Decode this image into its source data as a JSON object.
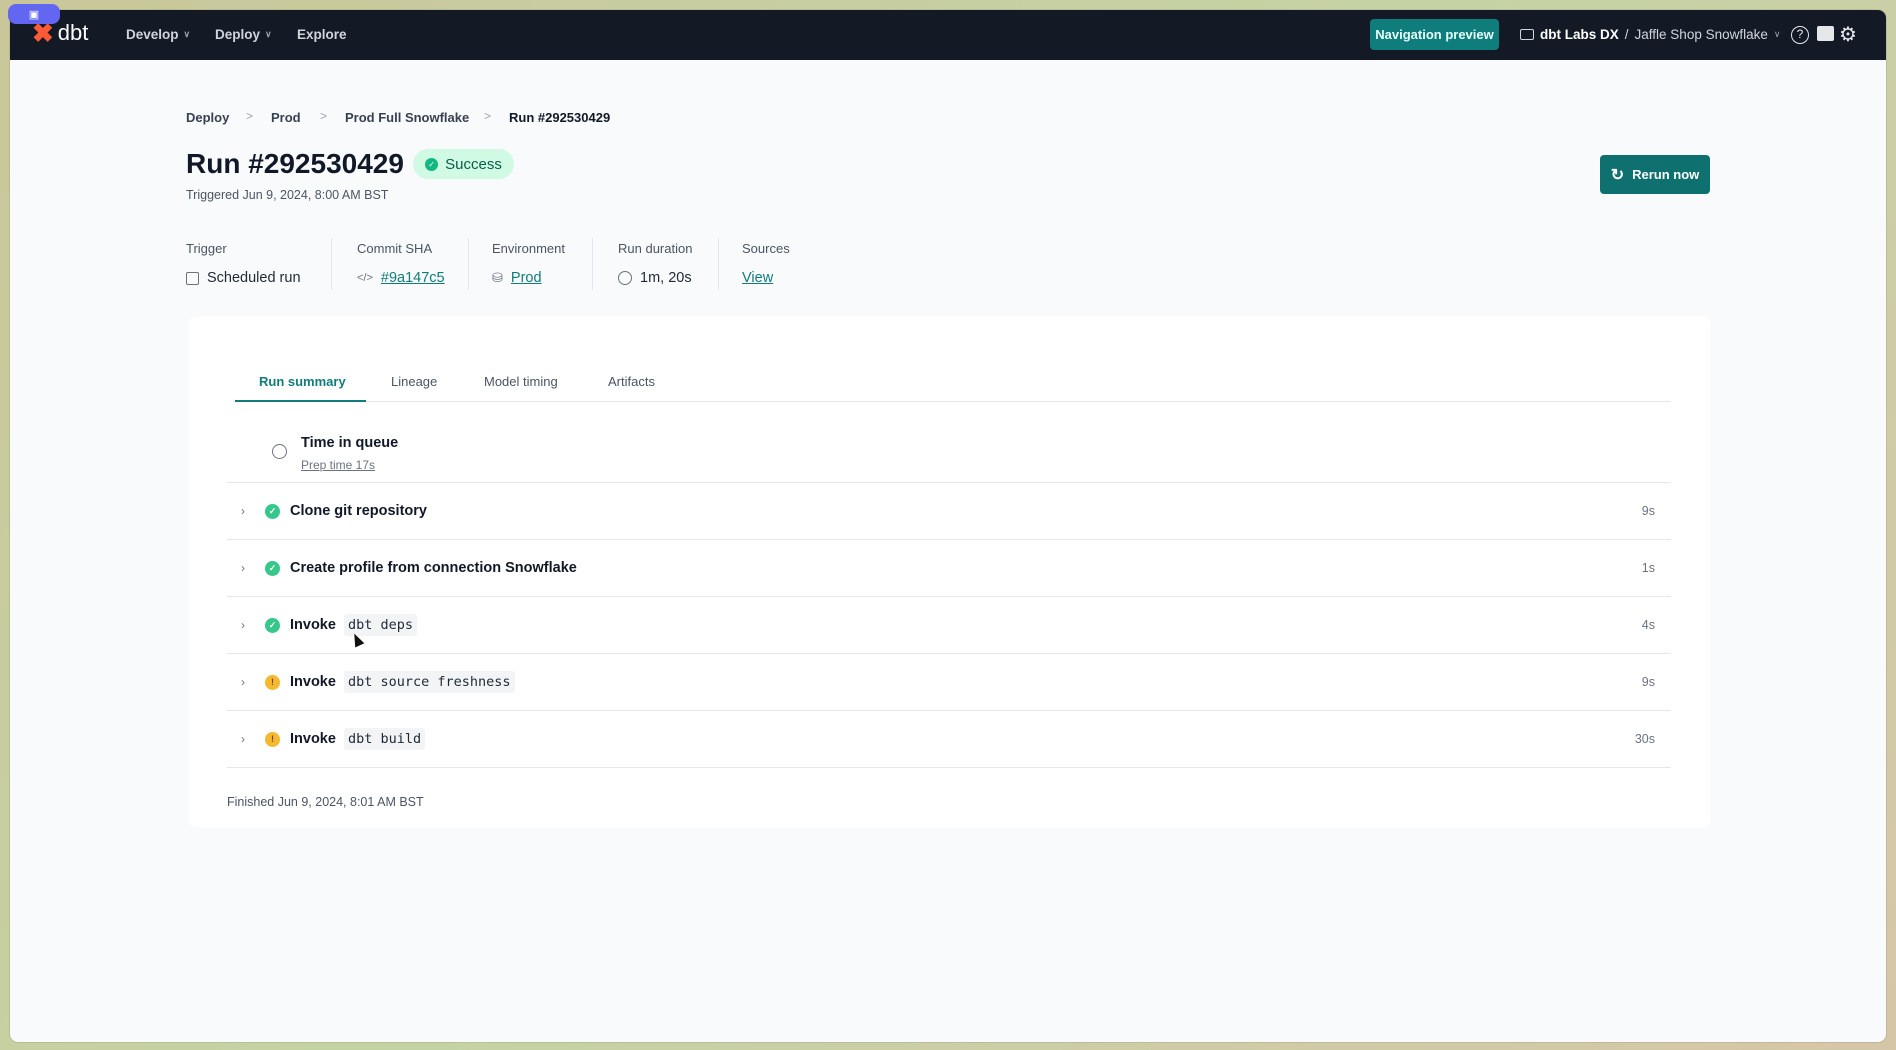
{
  "header": {
    "brand": "dbt",
    "nav": [
      {
        "label": "Develop",
        "has_menu": true
      },
      {
        "label": "Deploy",
        "has_menu": true
      },
      {
        "label": "Explore",
        "has_menu": false
      }
    ],
    "nav_preview_label": "Navigation preview",
    "account": "dbt Labs DX",
    "separator": "/",
    "project": "Jaffle Shop Snowflake"
  },
  "breadcrumb": [
    {
      "label": "Deploy"
    },
    {
      "label": "Prod"
    },
    {
      "label": "Prod Full Snowflake"
    },
    {
      "label": "Run #292530429"
    }
  ],
  "breadcrumb_sep": ">",
  "run": {
    "title": "Run #292530429",
    "status": "Success",
    "triggered": "Triggered Jun 9, 2024, 8:00 AM BST",
    "rerun_label": "Rerun now"
  },
  "meta": [
    {
      "label": "Trigger",
      "value": "Scheduled run",
      "icon": "calendar-icon"
    },
    {
      "label": "Commit SHA",
      "value": "#9a147c5",
      "icon": "code-icon"
    },
    {
      "label": "Environment",
      "value": "Prod",
      "icon": "database-icon"
    },
    {
      "label": "Run duration",
      "value": "1m, 20s",
      "icon": "clock-icon"
    },
    {
      "label": "Sources",
      "value": "View"
    }
  ],
  "tabs": [
    {
      "label": "Run summary",
      "active": true
    },
    {
      "label": "Lineage"
    },
    {
      "label": "Model timing"
    },
    {
      "label": "Artifacts"
    }
  ],
  "queue": {
    "title": "Time in queue",
    "prep": "Prep time 17s"
  },
  "steps": [
    {
      "text": "Clone git repository",
      "code": "",
      "status": "success",
      "duration": "9s"
    },
    {
      "text": "Create profile from connection Snowflake",
      "code": "",
      "status": "success",
      "duration": "1s"
    },
    {
      "text": "Invoke",
      "code": "dbt deps",
      "status": "success",
      "duration": "4s"
    },
    {
      "text": "Invoke",
      "code": "dbt source freshness",
      "status": "warning",
      "duration": "9s"
    },
    {
      "text": "Invoke",
      "code": "dbt build",
      "status": "warning",
      "duration": "30s"
    }
  ],
  "finished": "Finished Jun 9, 2024, 8:01 AM BST",
  "colors": {
    "accent": "#0f7d7b",
    "success": "#34c88a",
    "warning": "#f5b82e",
    "header_bg": "#131a26"
  }
}
